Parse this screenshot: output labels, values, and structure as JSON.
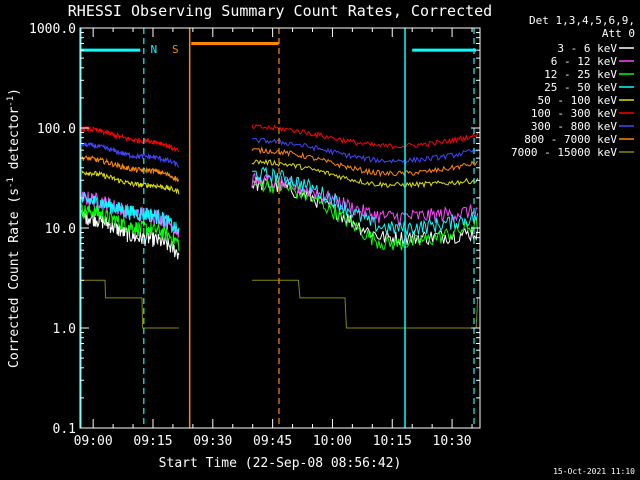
{
  "chart_data": {
    "type": "line",
    "title": "RHESSI Observing Summary Count Rates, Corrected",
    "xlabel": "Start Time (22-Sep-08 08:56:42)",
    "ylabel_main": "Corrected Count Rate (s",
    "ylabel_sup1": "-1",
    "ylabel_mid": " detector",
    "ylabel_sup2": "-1",
    "ylabel_end": ")",
    "y_scale": "log",
    "ylim": [
      0.1,
      1000
    ],
    "xlim_min": [
      56.7,
      157
    ],
    "y_ticks": [
      {
        "v": 1000,
        "label": "1000.0"
      },
      {
        "v": 100,
        "label": "100.0"
      },
      {
        "v": 10,
        "label": "10.0"
      },
      {
        "v": 1,
        "label": "1.0"
      },
      {
        "v": 0.1,
        "label": "0.1"
      }
    ],
    "x_ticks": [
      {
        "t": 60,
        "label": "09:00"
      },
      {
        "t": 75,
        "label": "09:15"
      },
      {
        "t": 90,
        "label": "09:30"
      },
      {
        "t": 105,
        "label": "09:45"
      },
      {
        "t": 120,
        "label": "10:00"
      },
      {
        "t": 135,
        "label": "10:15"
      },
      {
        "t": 150,
        "label": "10:30"
      }
    ],
    "legend_header": [
      "Det 1,3,4,5,6,9,",
      "Att 0"
    ],
    "legend_placement": "right",
    "series": [
      {
        "name": "3 - 6 keV",
        "color": "#ffffff",
        "seg1": [
          13,
          8,
          5.5
        ],
        "seg2": [
          28,
          8,
          9
        ]
      },
      {
        "name": "6 - 12 keV",
        "color": "#ff44ff",
        "seg1": [
          20,
          14,
          9
        ],
        "seg2": [
          30,
          13,
          15
        ]
      },
      {
        "name": "12 - 25 keV",
        "color": "#00ff00",
        "seg1": [
          15,
          10,
          7
        ],
        "seg2": [
          28,
          7,
          11
        ]
      },
      {
        "name": "25 - 50 keV",
        "color": "#00ffff",
        "seg1": [
          19,
          14,
          9
        ],
        "seg2": [
          35,
          10,
          13
        ]
      },
      {
        "name": "50 - 100 keV",
        "color": "#dddd00",
        "seg1": [
          36,
          27,
          23
        ],
        "seg2": [
          46,
          27,
          30
        ]
      },
      {
        "name": "100 - 300 keV",
        "color": "#ff0000",
        "seg1": [
          98,
          75,
          58
        ],
        "seg2": [
          102,
          66,
          85
        ]
      },
      {
        "name": "300 - 800 keV",
        "color": "#4444ff",
        "seg1": [
          68,
          52,
          42
        ],
        "seg2": [
          75,
          47,
          60
        ]
      },
      {
        "name": "800 - 7000 keV",
        "color": "#ff8800",
        "seg1": [
          50,
          38,
          30
        ],
        "seg2": [
          60,
          35,
          45
        ]
      },
      {
        "name": "7000 - 15000 keV",
        "color": "#888800",
        "seg1": [
          3,
          1.5,
          1
        ],
        "seg2": [
          3,
          1,
          1.5
        ]
      }
    ],
    "gap_start_min": 81.5,
    "gap_end_min": 99.8,
    "night_bars": [
      {
        "from": 56.8,
        "to": 71.8,
        "y": 600,
        "color": "#00ffff"
      },
      {
        "from": 140,
        "to": 156,
        "y": 600,
        "color": "#00ffff"
      },
      {
        "from": 84.6,
        "to": 106.5,
        "y": 700,
        "color": "#ff8800"
      }
    ],
    "solid_lines": [
      {
        "t": 56.9,
        "color": "#00ffff"
      },
      {
        "t": 84.2,
        "color": "#ff8800"
      },
      {
        "t": 138.2,
        "color": "#00ffff"
      }
    ],
    "dashed_lines": [
      {
        "t": 72.7,
        "color": "#00ffff"
      },
      {
        "t": 106.6,
        "color": "#ff8800"
      },
      {
        "t": 155.5,
        "color": "#00ffff"
      }
    ],
    "markers": [
      {
        "t": 75.2,
        "label": "N",
        "color": "#00ffff"
      },
      {
        "t": 80.6,
        "label": "S",
        "color": "#ff8800"
      }
    ],
    "timestamp": "15-Oct-2021 11:10"
  }
}
